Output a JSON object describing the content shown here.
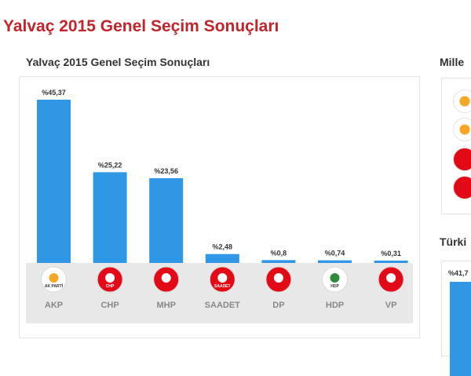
{
  "page_title": "Yalvaç 2015 Genel Seçim Sonuçları",
  "right_panel": {
    "title_top": "Mille",
    "title_bottom": "Türki",
    "value_partial": "%41,7",
    "logos": [
      "akp-logo",
      "akp-logo",
      "mhp-logo",
      "mhp-logo"
    ]
  },
  "chart_data": {
    "type": "bar",
    "title": "Yalvaç 2015 Genel Seçim Sonuçları",
    "categories": [
      "AKP",
      "CHP",
      "MHP",
      "SAADET",
      "DP",
      "HDP",
      "VP"
    ],
    "values": [
      45.37,
      25.22,
      23.56,
      2.48,
      0.8,
      0.74,
      0.31
    ],
    "value_labels": [
      "%45,37",
      "%25,22",
      "%23,56",
      "%2,48",
      "%0,8",
      "%0,74",
      "%0,31"
    ],
    "logo_texts": [
      "AK PARTİ",
      "CHP",
      "",
      "SAADET",
      "",
      "HDP",
      ""
    ],
    "ylim": [
      0,
      45.37
    ],
    "bar_color": "#3097e7",
    "grid": false,
    "legend": "none"
  }
}
